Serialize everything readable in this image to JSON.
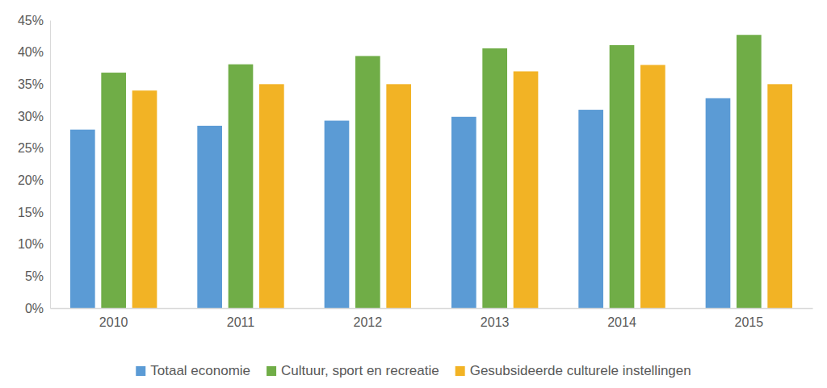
{
  "chart_data": {
    "type": "bar",
    "categories": [
      "2010",
      "2011",
      "2012",
      "2013",
      "2014",
      "2015"
    ],
    "series": [
      {
        "name": "Totaal economie",
        "color": "#5B9BD5",
        "values": [
          27.9,
          28.5,
          29.3,
          29.9,
          31.0,
          32.8
        ]
      },
      {
        "name": "Cultuur, sport en recreatie",
        "color": "#70AD47",
        "values": [
          36.8,
          38.1,
          39.4,
          40.6,
          41.1,
          42.7
        ]
      },
      {
        "name": "Gesubsideerde culturele instellingen",
        "color": "#F2B325",
        "values": [
          34.0,
          35.0,
          35.0,
          37.0,
          38.0,
          35.0
        ]
      }
    ],
    "ylim": [
      0,
      45
    ],
    "yticks": [
      {
        "value": 0,
        "label": "0%"
      },
      {
        "value": 5,
        "label": "5%"
      },
      {
        "value": 10,
        "label": "10%"
      },
      {
        "value": 15,
        "label": "15%"
      },
      {
        "value": 20,
        "label": "20%"
      },
      {
        "value": 25,
        "label": "25%"
      },
      {
        "value": 30,
        "label": "30%"
      },
      {
        "value": 35,
        "label": "35%"
      },
      {
        "value": 40,
        "label": "40%"
      },
      {
        "value": 45,
        "label": "45%"
      }
    ],
    "grid": false,
    "legend": "bottom"
  }
}
